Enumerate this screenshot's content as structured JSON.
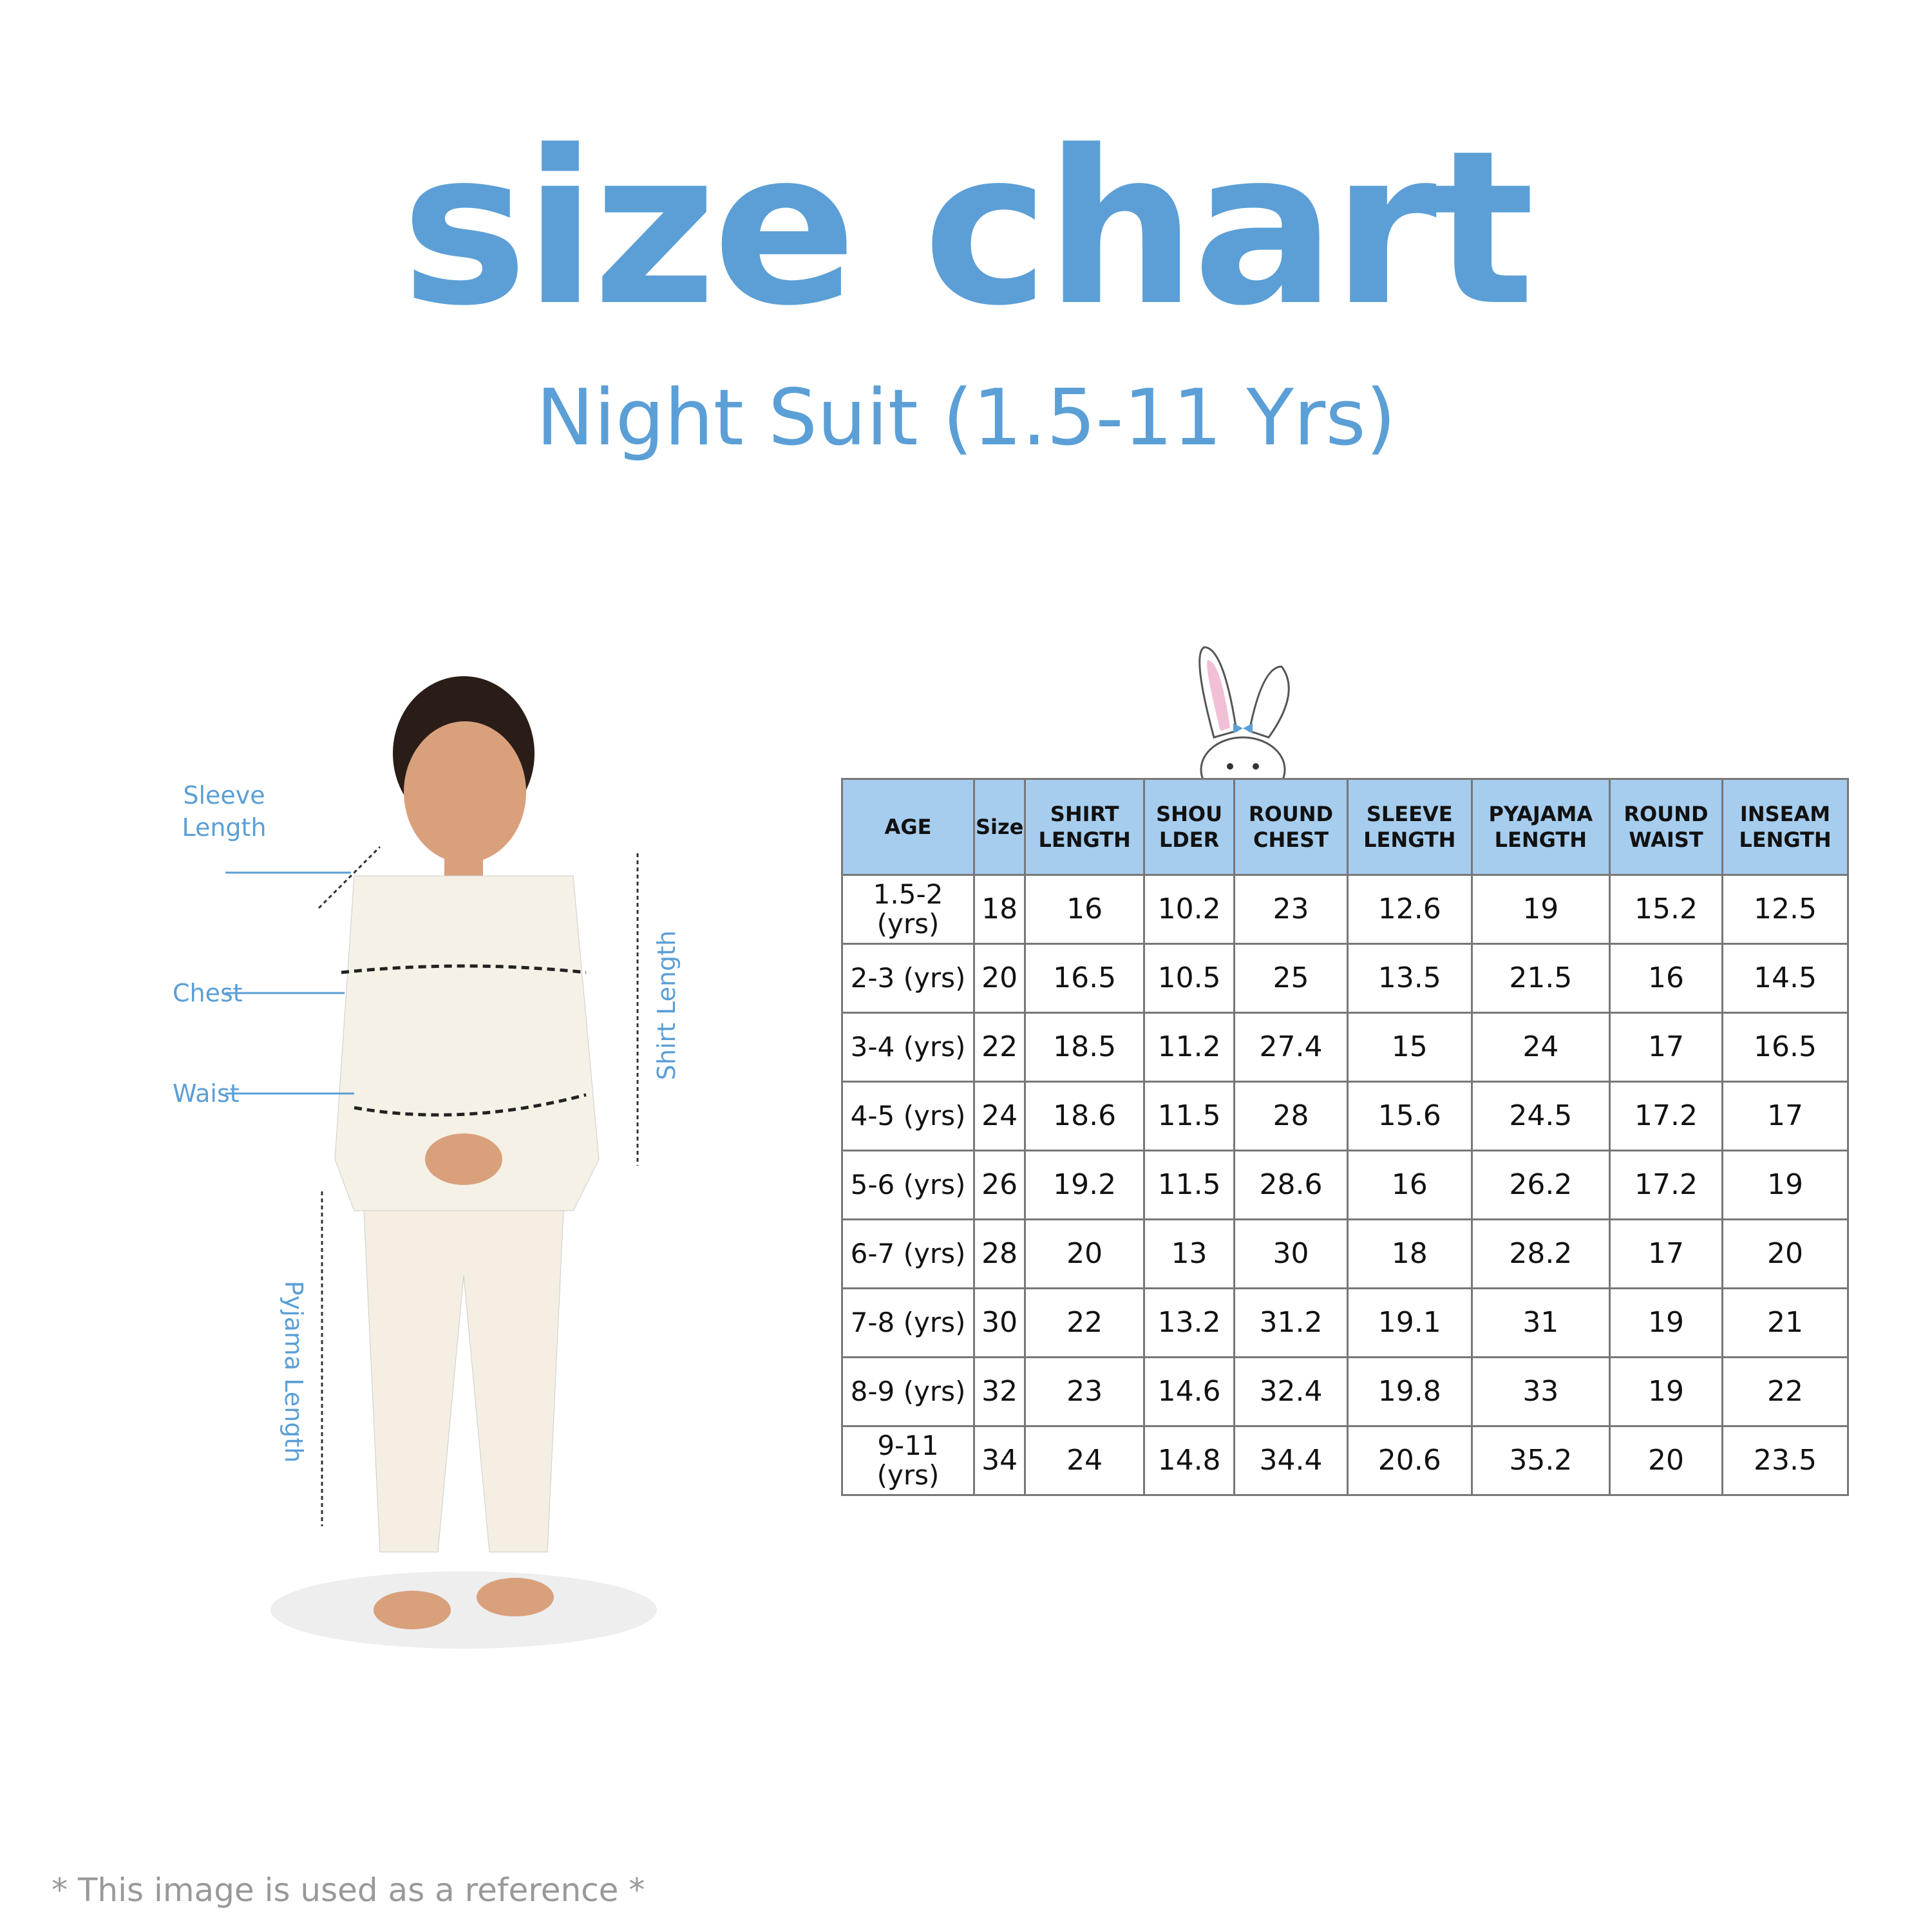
{
  "title": "size chart",
  "subtitle": "Night Suit (1.5-11 Yrs)",
  "measure_labels": {
    "sleeve": "Sleeve Length",
    "chest": "Chest",
    "waist": "Waist",
    "shirt": "Shirt Length",
    "pyjama": "Pyjama Length"
  },
  "accent_color": "#5b9fd6",
  "header_color": "#a6cdee",
  "table": {
    "headers": [
      "AGE",
      "Size",
      "SHIRT LENGTH",
      "SHOU LDER",
      "ROUND CHEST",
      "SLEEVE LENGTH",
      "PYAJAMA LENGTH",
      "ROUND WAIST",
      "INSEAM LENGTH"
    ],
    "rows": [
      [
        "1.5-2 (yrs)",
        "18",
        "16",
        "10.2",
        "23",
        "12.6",
        "19",
        "15.2",
        "12.5"
      ],
      [
        "2-3 (yrs)",
        "20",
        "16.5",
        "10.5",
        "25",
        "13.5",
        "21.5",
        "16",
        "14.5"
      ],
      [
        "3-4 (yrs)",
        "22",
        "18.5",
        "11.2",
        "27.4",
        "15",
        "24",
        "17",
        "16.5"
      ],
      [
        "4-5 (yrs)",
        "24",
        "18.6",
        "11.5",
        "28",
        "15.6",
        "24.5",
        "17.2",
        "17"
      ],
      [
        "5-6 (yrs)",
        "26",
        "19.2",
        "11.5",
        "28.6",
        "16",
        "26.2",
        "17.2",
        "19"
      ],
      [
        "6-7 (yrs)",
        "28",
        "20",
        "13",
        "30",
        "18",
        "28.2",
        "17",
        "20"
      ],
      [
        "7-8 (yrs)",
        "30",
        "22",
        "13.2",
        "31.2",
        "19.1",
        "31",
        "19",
        "21"
      ],
      [
        "8-9 (yrs)",
        "32",
        "23",
        "14.6",
        "32.4",
        "19.8",
        "33",
        "19",
        "22"
      ],
      [
        "9-11 (yrs)",
        "34",
        "24",
        "14.8",
        "34.4",
        "20.6",
        "35.2",
        "20",
        "23.5"
      ]
    ]
  },
  "footer": "* This image is used as a reference *"
}
